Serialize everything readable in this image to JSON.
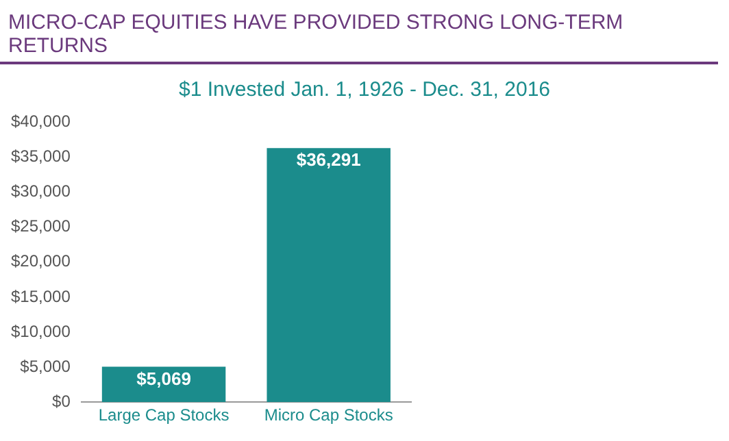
{
  "chart_data": {
    "type": "bar",
    "title": "MICRO-CAP EQUITIES HAVE PROVIDED STRONG LONG-TERM RETURNS",
    "subtitle": "$1 Invested Jan. 1, 1926 - Dec. 31, 2016",
    "categories": [
      "Large Cap Stocks",
      "Micro Cap Stocks"
    ],
    "values": [
      5069,
      36291
    ],
    "color": "#1b8c8c",
    "value_labels": [
      "$5,069",
      "$36,291"
    ],
    "ylim": [
      0,
      40000
    ],
    "yticks": [
      {
        "value": 0,
        "label": "$0"
      },
      {
        "value": 5000,
        "label": "$5,000"
      },
      {
        "value": 10000,
        "label": "$10,000"
      },
      {
        "value": 15000,
        "label": "$15,000"
      },
      {
        "value": 20000,
        "label": "$20,000"
      },
      {
        "value": 25000,
        "label": "$25,000"
      },
      {
        "value": 30000,
        "label": "$30,000"
      },
      {
        "value": 35000,
        "label": "$35,000"
      },
      {
        "value": 40000,
        "label": "$40,000"
      }
    ],
    "grid": false,
    "legend": false
  }
}
